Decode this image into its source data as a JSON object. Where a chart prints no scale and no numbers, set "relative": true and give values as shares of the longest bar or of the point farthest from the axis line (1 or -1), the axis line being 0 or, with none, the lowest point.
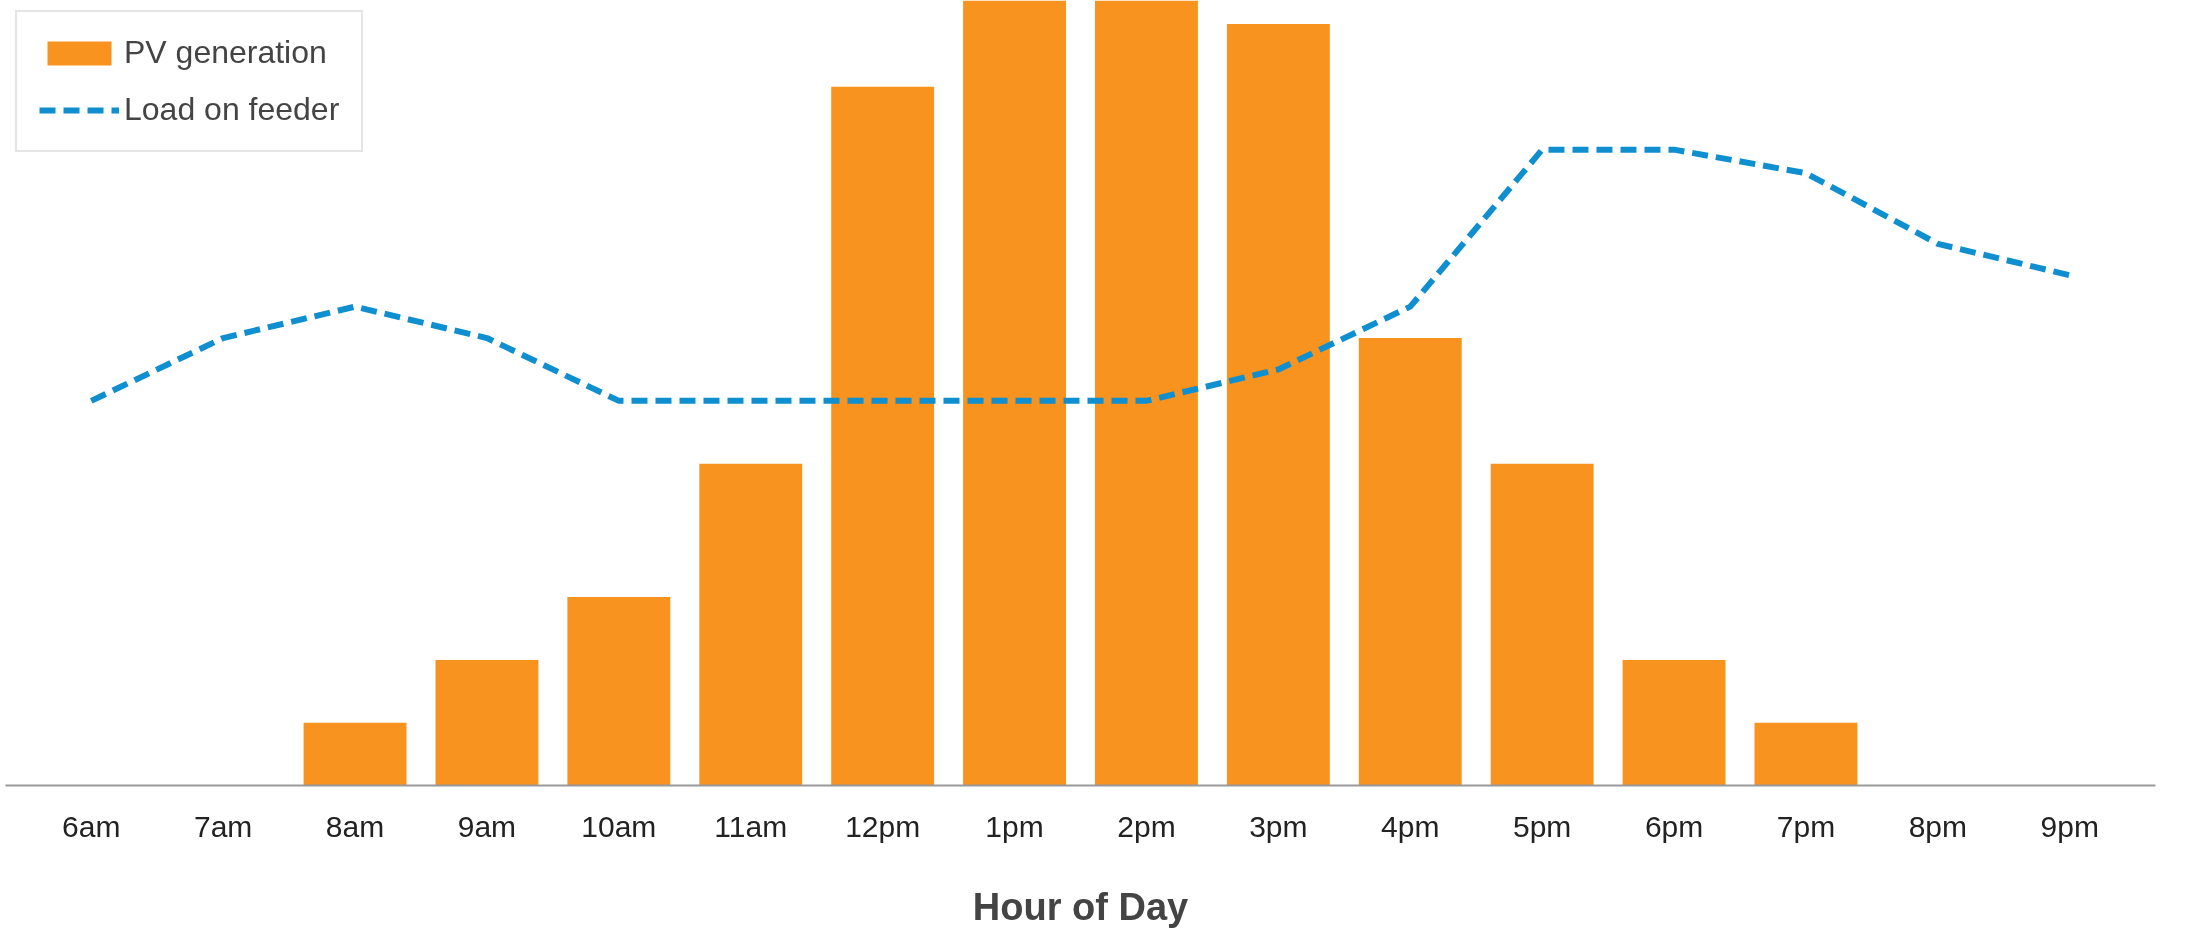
{
  "chart_data": {
    "type": "bar",
    "xlabel": "Hour of Day",
    "relative": true,
    "legend": "top left",
    "grid": false,
    "categories": [
      "6am",
      "7am",
      "8am",
      "9am",
      "10am",
      "11am",
      "12pm",
      "1pm",
      "2pm",
      "3pm",
      "4pm",
      "5pm",
      "6pm",
      "7pm",
      "8pm",
      "9pm"
    ],
    "series": [
      {
        "name": "PV generation",
        "color": "#f7931e",
        "values": [
          0,
          0,
          0.08,
          0.16,
          0.24,
          0.41,
          0.89,
          1,
          1,
          0.97,
          0.57,
          0.41,
          0.16,
          0.08,
          0,
          0
        ]
      },
      {
        "name": "Load on feeder",
        "type": "line",
        "line_style": "dashed",
        "color": "#0f8fd0",
        "values": [
          0.49,
          0.57,
          0.61,
          0.57,
          0.49,
          0.49,
          0.49,
          0.49,
          0.49,
          0.53,
          0.61,
          0.81,
          0.81,
          0.78,
          0.69,
          0.65
        ]
      }
    ]
  }
}
